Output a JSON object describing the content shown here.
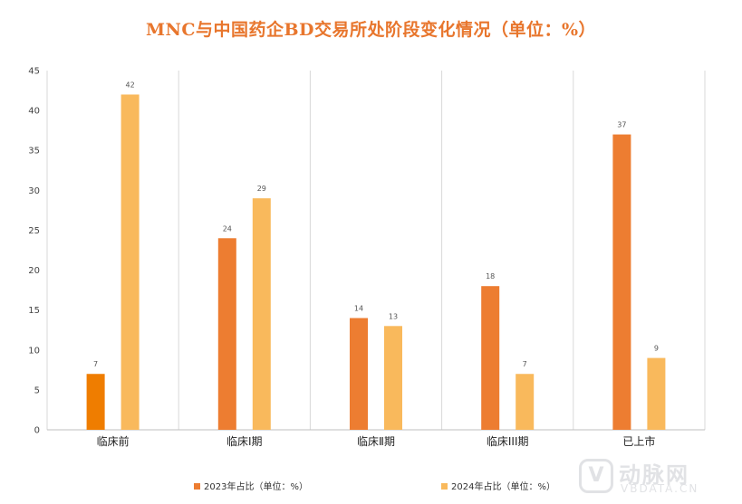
{
  "chart_data": {
    "type": "bar",
    "title": "MNC与中国药企BD交易所处阶段变化情况（单位：%）",
    "categories": [
      "临床前",
      "临床Ⅰ期",
      "临床Ⅱ期",
      "临床III期",
      "已上市"
    ],
    "series": [
      {
        "name": "2023年占比（单位：%）",
        "values": [
          7,
          24,
          14,
          18,
          37
        ],
        "color": "#ed7d31",
        "first_color": "#ef7d00"
      },
      {
        "name": "2024年占比（单位：%）",
        "values": [
          42,
          29,
          13,
          7,
          9
        ],
        "color": "#f9b95c"
      }
    ],
    "ylim": [
      0,
      45
    ],
    "yticks": [
      0,
      5,
      10,
      15,
      20,
      25,
      30,
      35,
      40,
      45
    ],
    "grid": "vertical category separators",
    "legend": "bottom"
  },
  "watermark": {
    "logo_glyph": "V",
    "cn": "动脉网",
    "en": "VBDATA.CN"
  }
}
